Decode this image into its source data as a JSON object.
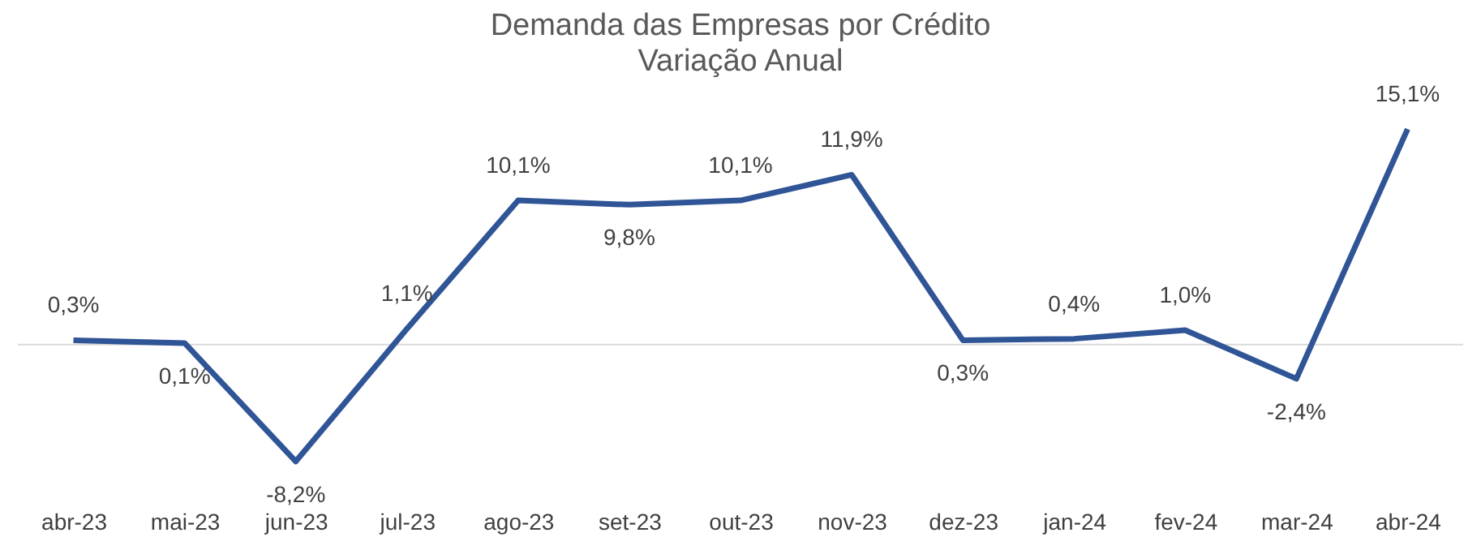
{
  "chart_data": {
    "type": "line",
    "title": "Demanda das Empresas por Crédito",
    "subtitle": "Variação Anual",
    "categories": [
      "abr-23",
      "mai-23",
      "jun-23",
      "jul-23",
      "ago-23",
      "set-23",
      "out-23",
      "nov-23",
      "dez-23",
      "jan-24",
      "fev-24",
      "mar-24",
      "abr-24"
    ],
    "series": [
      {
        "color": "#2f5597",
        "values": [
          0.3,
          0.1,
          -8.2,
          1.1,
          10.1,
          9.8,
          10.1,
          11.9,
          0.3,
          0.4,
          1.0,
          -2.4,
          15.1
        ],
        "value_labels": [
          "0,3%",
          "0,1%",
          "-8,2%",
          "1,1%",
          "10,1%",
          "9,8%",
          "10,1%",
          "11,9%",
          "0,3%",
          "0,4%",
          "1,0%",
          "-2,4%",
          "15,1%"
        ]
      }
    ],
    "grid": false,
    "marker": "none",
    "line_style": "solid"
  }
}
